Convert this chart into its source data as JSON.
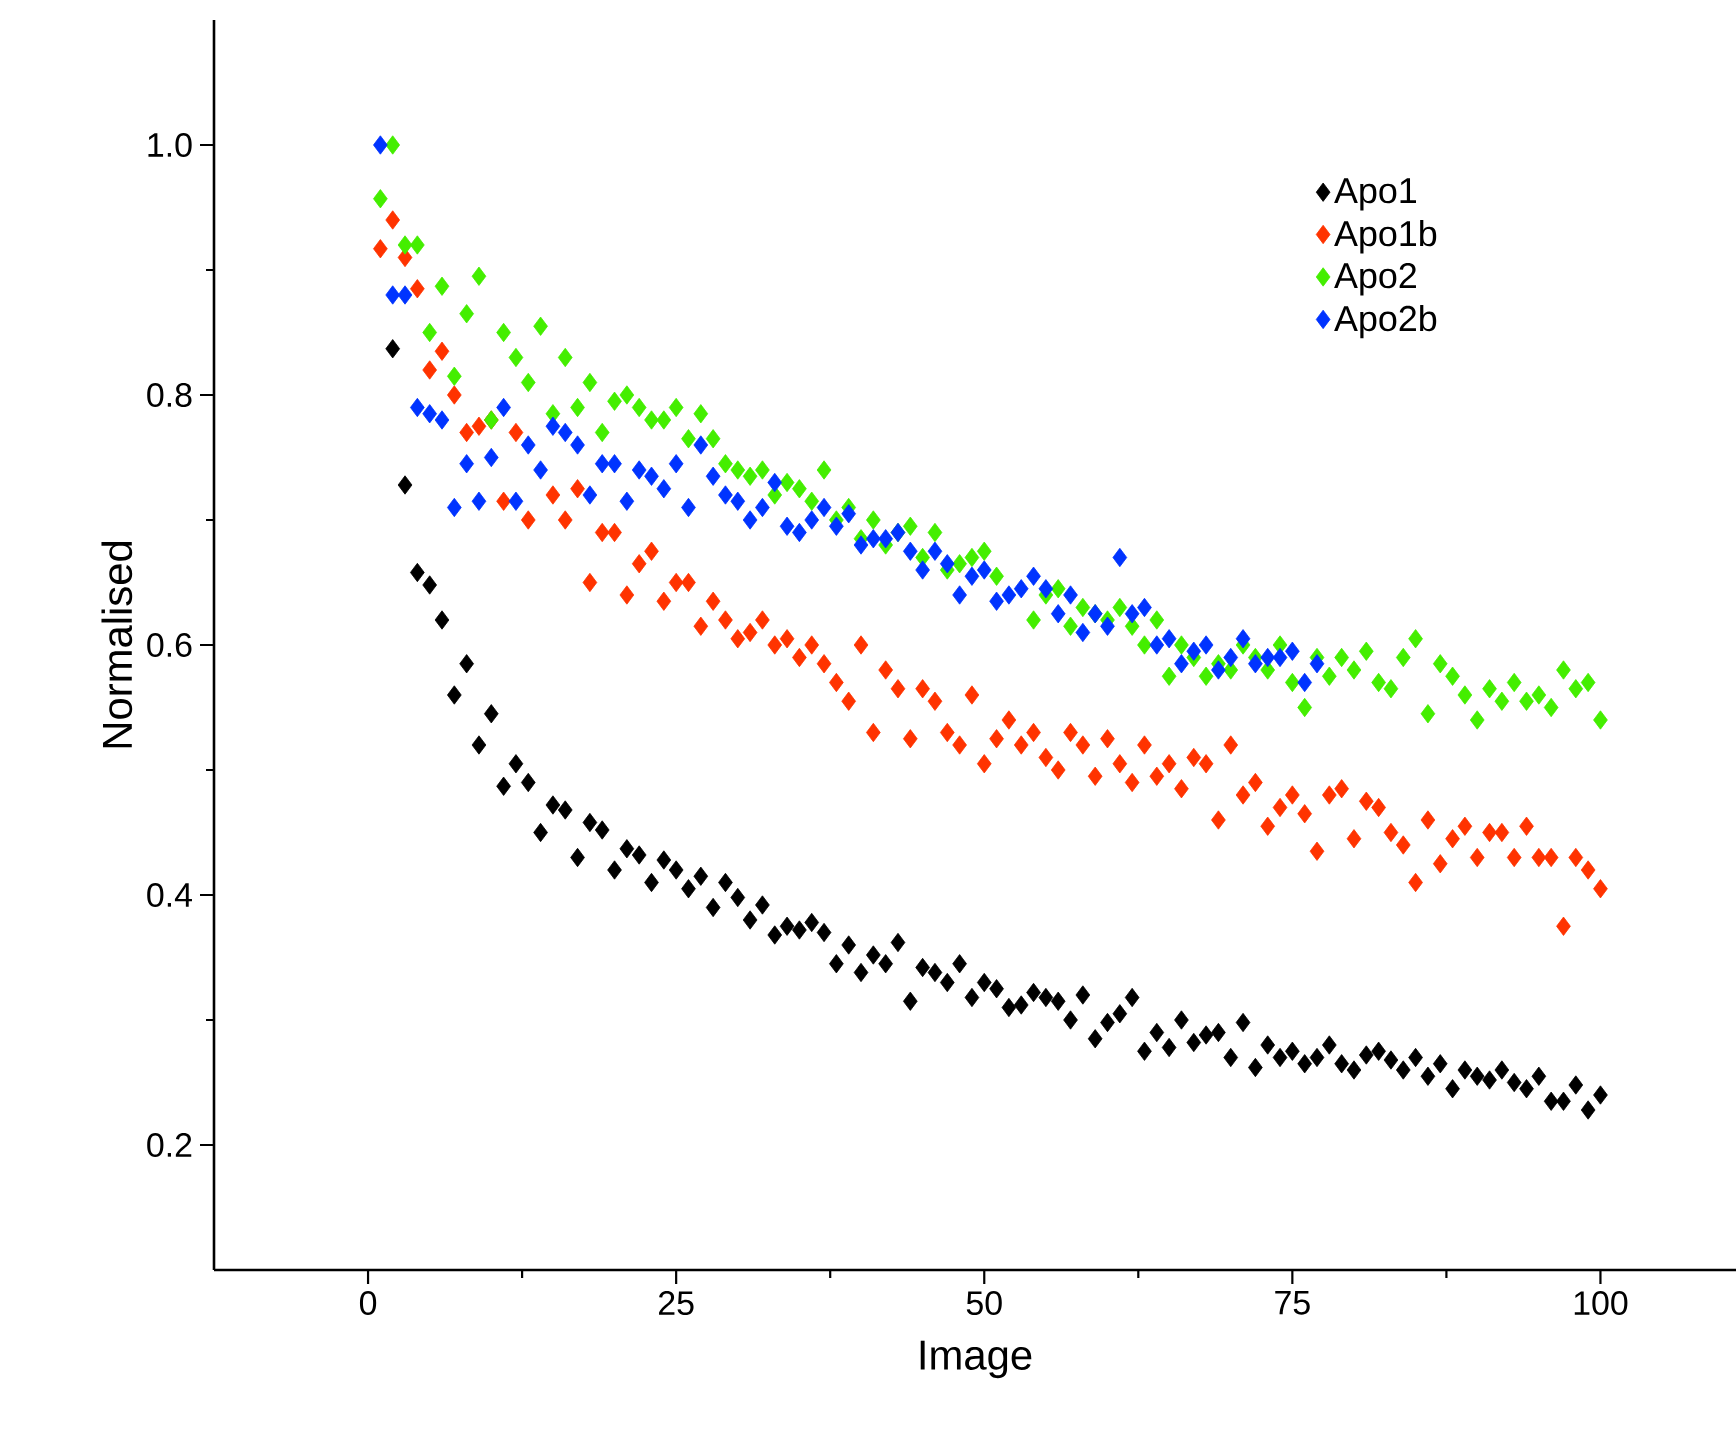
{
  "chart_data": {
    "type": "scatter",
    "xlabel": "Image",
    "ylabel": "Normalised",
    "marker": "diamond",
    "legend": "top right",
    "xlim": [
      -12.5,
      111
    ],
    "ylim": [
      0.1,
      1.1
    ],
    "xticks": [
      0,
      25,
      50,
      75,
      100
    ],
    "yticks": [
      {
        "value": 0.2,
        "label": "0.2"
      },
      {
        "value": 0.4,
        "label": "0.4"
      },
      {
        "value": 0.6,
        "label": "0.6"
      },
      {
        "value": 0.8,
        "label": "0.8"
      },
      {
        "value": 1.0,
        "label": "1.0"
      }
    ],
    "series": [
      {
        "name": "Apo1",
        "color": "#000000",
        "x": [
          2,
          3,
          4,
          5,
          6,
          7,
          8,
          9,
          10,
          11,
          12,
          13,
          14,
          15,
          16,
          17,
          18,
          19,
          20,
          21,
          22,
          23,
          24,
          25,
          26,
          27,
          28,
          29,
          30,
          31,
          32,
          33,
          34,
          35,
          36,
          37,
          38,
          39,
          40,
          41,
          42,
          43,
          44,
          45,
          46,
          47,
          48,
          49,
          50,
          51,
          52,
          53,
          54,
          55,
          56,
          57,
          58,
          59,
          60,
          61,
          62,
          63,
          64,
          65,
          66,
          67,
          68,
          69,
          70,
          71,
          72,
          73,
          74,
          75,
          76,
          77,
          78,
          79,
          80,
          81,
          82,
          83,
          84,
          85,
          86,
          87,
          88,
          89,
          90,
          91,
          92,
          93,
          94,
          95,
          96,
          97,
          98,
          99,
          100
        ],
        "values": [
          0.837,
          0.728,
          0.658,
          0.648,
          0.62,
          0.56,
          0.585,
          0.52,
          0.545,
          0.487,
          0.505,
          0.49,
          0.45,
          0.472,
          0.468,
          0.43,
          0.458,
          0.452,
          0.42,
          0.437,
          0.432,
          0.41,
          0.428,
          0.42,
          0.405,
          0.415,
          0.39,
          0.41,
          0.398,
          0.38,
          0.392,
          0.368,
          0.375,
          0.372,
          0.378,
          0.37,
          0.345,
          0.36,
          0.338,
          0.352,
          0.345,
          0.362,
          0.315,
          0.342,
          0.338,
          0.33,
          0.345,
          0.318,
          0.33,
          0.325,
          0.31,
          0.312,
          0.322,
          0.318,
          0.315,
          0.3,
          0.32,
          0.285,
          0.298,
          0.305,
          0.318,
          0.275,
          0.29,
          0.278,
          0.3,
          0.282,
          0.288,
          0.29,
          0.27,
          0.298,
          0.262,
          0.28,
          0.27,
          0.275,
          0.265,
          0.27,
          0.28,
          0.265,
          0.26,
          0.272,
          0.275,
          0.268,
          0.26,
          0.27,
          0.255,
          0.265,
          0.245,
          0.26,
          0.255,
          0.252,
          0.26,
          0.25,
          0.245,
          0.255,
          0.235,
          0.235,
          0.248,
          0.228,
          0.24
        ]
      },
      {
        "name": "Apo1b",
        "color": "#ff3300",
        "x": [
          1,
          2,
          3,
          4,
          5,
          6,
          7,
          8,
          9,
          10,
          11,
          12,
          13,
          14,
          15,
          16,
          17,
          18,
          19,
          20,
          21,
          22,
          23,
          24,
          25,
          26,
          27,
          28,
          29,
          30,
          31,
          32,
          33,
          34,
          35,
          36,
          37,
          38,
          39,
          40,
          41,
          42,
          43,
          44,
          45,
          46,
          47,
          48,
          49,
          50,
          51,
          52,
          53,
          54,
          55,
          56,
          57,
          58,
          59,
          60,
          61,
          62,
          63,
          64,
          65,
          66,
          67,
          68,
          69,
          70,
          71,
          72,
          73,
          74,
          75,
          76,
          77,
          78,
          79,
          80,
          81,
          82,
          83,
          84,
          85,
          86,
          87,
          88,
          89,
          90,
          91,
          92,
          93,
          94,
          95,
          96,
          97,
          98,
          99,
          100
        ],
        "values": [
          0.917,
          0.94,
          0.91,
          0.885,
          0.82,
          0.835,
          0.8,
          0.77,
          0.775,
          0.78,
          0.715,
          0.77,
          0.7,
          null,
          0.72,
          0.7,
          0.725,
          0.65,
          0.69,
          0.69,
          0.64,
          0.665,
          0.675,
          0.635,
          0.65,
          0.65,
          0.615,
          0.635,
          0.62,
          0.605,
          0.61,
          0.62,
          0.6,
          0.605,
          0.59,
          0.6,
          0.585,
          0.57,
          0.555,
          0.6,
          0.53,
          0.58,
          0.565,
          0.525,
          0.565,
          0.555,
          0.53,
          0.52,
          0.56,
          0.505,
          0.525,
          0.54,
          0.52,
          0.53,
          0.51,
          0.5,
          0.53,
          0.52,
          0.495,
          0.525,
          0.505,
          0.49,
          0.52,
          0.495,
          0.505,
          0.485,
          0.51,
          0.505,
          0.46,
          0.52,
          0.48,
          0.49,
          0.455,
          0.47,
          0.48,
          0.465,
          0.435,
          0.48,
          0.485,
          0.445,
          0.475,
          0.47,
          0.45,
          0.44,
          0.41,
          0.46,
          0.425,
          0.445,
          0.455,
          0.43,
          0.45,
          0.45,
          0.43,
          0.455,
          0.43,
          0.43,
          0.375,
          0.43,
          0.42,
          0.405
        ]
      },
      {
        "name": "Apo2",
        "color": "#44ee00",
        "x": [
          1,
          2,
          3,
          4,
          5,
          6,
          7,
          8,
          9,
          10,
          11,
          12,
          13,
          14,
          15,
          16,
          17,
          18,
          19,
          20,
          21,
          22,
          23,
          24,
          25,
          26,
          27,
          28,
          29,
          30,
          31,
          32,
          33,
          34,
          35,
          36,
          37,
          38,
          39,
          40,
          41,
          42,
          43,
          44,
          45,
          46,
          47,
          48,
          49,
          50,
          51,
          52,
          53,
          54,
          55,
          56,
          57,
          58,
          59,
          60,
          61,
          62,
          63,
          64,
          65,
          66,
          67,
          68,
          69,
          70,
          71,
          72,
          73,
          74,
          75,
          76,
          77,
          78,
          79,
          80,
          81,
          82,
          83,
          84,
          85,
          86,
          87,
          88,
          89,
          90,
          91,
          92,
          93,
          94,
          95,
          96,
          97,
          98,
          99,
          100
        ],
        "values": [
          0.957,
          1.0,
          0.92,
          0.92,
          0.85,
          0.887,
          0.815,
          0.865,
          0.895,
          0.78,
          0.85,
          0.83,
          0.81,
          0.855,
          0.785,
          0.83,
          0.79,
          0.81,
          0.77,
          0.795,
          0.8,
          0.79,
          0.78,
          0.78,
          0.79,
          0.765,
          0.785,
          0.765,
          0.745,
          0.74,
          0.735,
          0.74,
          0.72,
          0.73,
          0.725,
          0.715,
          0.74,
          0.7,
          0.71,
          0.685,
          0.7,
          0.68,
          0.69,
          0.695,
          0.67,
          0.69,
          0.66,
          0.665,
          0.67,
          0.675,
          0.655,
          null,
          null,
          0.62,
          0.64,
          0.645,
          0.615,
          0.63,
          0.625,
          0.62,
          0.63,
          0.615,
          0.6,
          0.62,
          0.575,
          0.6,
          0.59,
          0.575,
          0.585,
          0.58,
          0.6,
          0.59,
          0.58,
          0.6,
          0.57,
          0.55,
          0.59,
          0.575,
          0.59,
          0.58,
          0.595,
          0.57,
          0.565,
          0.59,
          0.605,
          0.545,
          0.585,
          0.575,
          0.56,
          0.54,
          0.565,
          0.555,
          0.57,
          0.555,
          0.56,
          0.55,
          0.58,
          0.565,
          0.57,
          0.54
        ]
      },
      {
        "name": "Apo2b",
        "color": "#0033ff",
        "x": [
          1,
          2,
          3,
          4,
          5,
          6,
          7,
          8,
          9,
          10,
          11,
          12,
          13,
          14,
          15,
          16,
          17,
          18,
          19,
          20,
          21,
          22,
          23,
          24,
          25,
          26,
          27,
          28,
          29,
          30,
          31,
          32,
          33,
          34,
          35,
          36,
          37,
          38,
          39,
          40,
          41,
          42,
          43,
          44,
          45,
          46,
          47,
          48,
          49,
          50,
          51,
          52,
          53,
          54,
          55,
          56,
          57,
          58,
          59,
          60,
          61,
          62,
          63,
          64,
          65,
          66,
          67,
          68,
          69,
          70,
          71,
          72,
          73,
          74,
          75,
          76,
          77
        ],
        "values": [
          1.0,
          0.88,
          0.88,
          0.79,
          0.785,
          0.78,
          0.71,
          0.745,
          0.715,
          0.75,
          0.79,
          0.715,
          0.76,
          0.74,
          0.775,
          0.77,
          0.76,
          0.72,
          0.745,
          0.745,
          0.715,
          0.74,
          0.735,
          0.725,
          0.745,
          0.71,
          0.76,
          0.735,
          0.72,
          0.715,
          0.7,
          0.71,
          0.73,
          0.695,
          0.69,
          0.7,
          0.71,
          0.695,
          0.705,
          0.68,
          0.685,
          0.685,
          0.69,
          0.675,
          0.66,
          0.675,
          0.665,
          0.64,
          0.655,
          0.66,
          0.635,
          0.64,
          0.645,
          0.655,
          0.645,
          0.625,
          0.64,
          0.61,
          0.625,
          0.615,
          0.67,
          0.625,
          0.63,
          0.6,
          0.605,
          0.585,
          0.595,
          0.6,
          0.58,
          0.59,
          0.605,
          0.585,
          0.59,
          0.59,
          0.595,
          0.57,
          0.585
        ]
      }
    ]
  }
}
